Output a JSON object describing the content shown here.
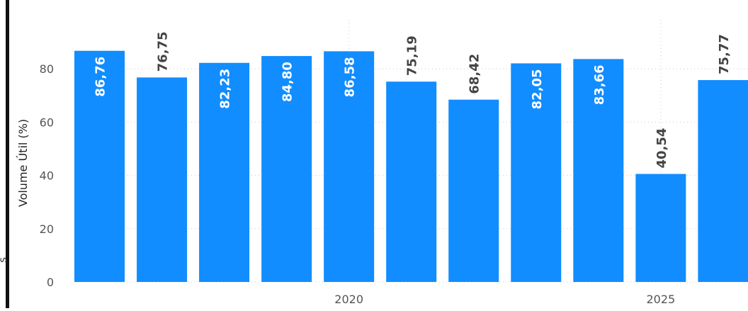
{
  "chart_data": {
    "type": "bar",
    "title": "",
    "ylabel": "Volume Útil (%)",
    "xlabel": "",
    "ylim": [
      0,
      92
    ],
    "yticks": [
      0,
      20,
      40,
      60,
      80
    ],
    "x_tick_labels": [
      {
        "label": "2020",
        "category_index": 4
      },
      {
        "label": "2025",
        "category_index": 9
      }
    ],
    "values": [
      86.76,
      76.75,
      82.23,
      84.8,
      86.58,
      75.19,
      68.42,
      82.05,
      83.66,
      40.54,
      75.77
    ],
    "value_labels": [
      "86,76",
      "76,75",
      "82,23",
      "84,80",
      "86,58",
      "75,19",
      "68,42",
      "82,05",
      "83,66",
      "40,54",
      "75,77"
    ],
    "label_inside": [
      true,
      false,
      true,
      true,
      true,
      false,
      false,
      true,
      true,
      false,
      false
    ],
    "grid": true,
    "bar_color": "#118dff"
  },
  "left_edge_text": "s"
}
